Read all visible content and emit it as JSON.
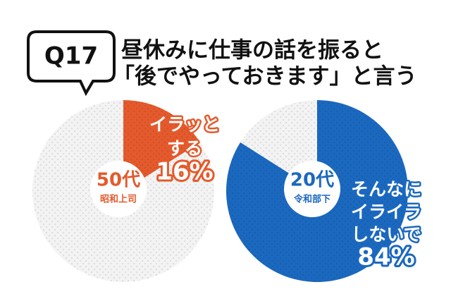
{
  "header": {
    "badge": "Q17",
    "title_lines": [
      "昼休みに仕事の話を振ると",
      "「後でやっておきます」と言う"
    ]
  },
  "chart_data": [
    {
      "type": "pie",
      "center_title": "50代",
      "center_subtitle": "昭和上司",
      "categories": [
        [
          "イラッと",
          "する"
        ],
        null
      ],
      "values": [
        16,
        84
      ],
      "value_labels": [
        "16%",
        null
      ],
      "colors": [
        "#e45a2c",
        "#f3f3f3"
      ],
      "label_color": "#e45a2c"
    },
    {
      "type": "pie",
      "center_title": "20代",
      "center_subtitle": "令和部下",
      "categories": [
        [
          "そんなに",
          "イライラ",
          "しないで"
        ],
        null
      ],
      "values": [
        84,
        16
      ],
      "value_labels": [
        "84%",
        null
      ],
      "colors": [
        "#1b68bf",
        "#f3f3f3"
      ],
      "label_color": "#1b68bf"
    }
  ]
}
